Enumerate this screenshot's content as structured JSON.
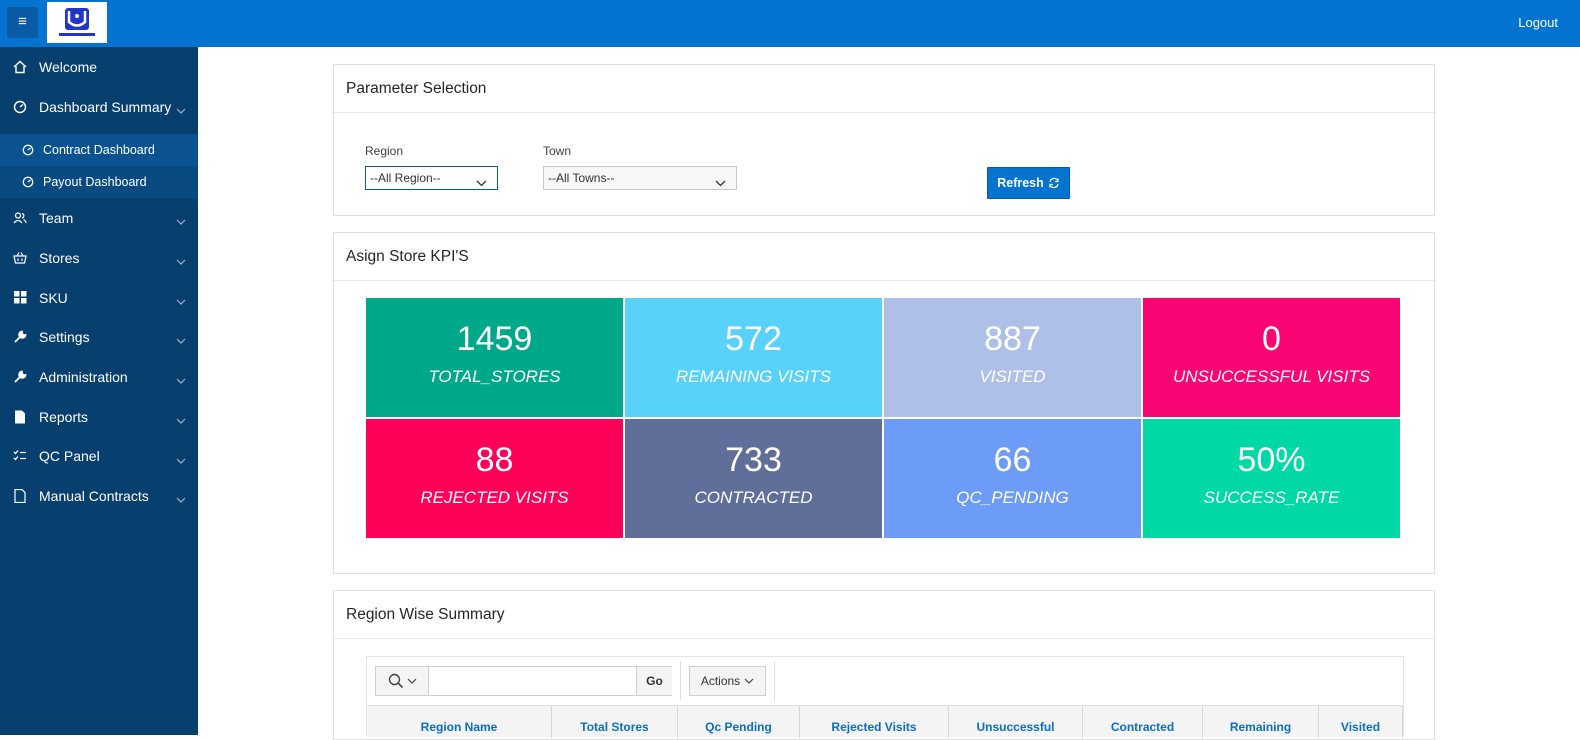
{
  "header": {
    "menu_icon": "hamburger-icon",
    "logo_alt": "Unilever",
    "logout": "Logout",
    "bg_color": "#0574d1"
  },
  "sidebar": {
    "items": [
      {
        "label": "Welcome",
        "icon": "home-icon"
      },
      {
        "label": "Dashboard Summary",
        "icon": "gauge-icon",
        "expanded": true
      },
      {
        "label": "Team",
        "icon": "users-icon"
      },
      {
        "label": "Stores",
        "icon": "basket-icon"
      },
      {
        "label": "SKU",
        "icon": "grid-icon"
      },
      {
        "label": "Settings",
        "icon": "wrench-icon"
      },
      {
        "label": "Administration",
        "icon": "wrench-icon"
      },
      {
        "label": "Reports",
        "icon": "file-icon"
      },
      {
        "label": "QC Panel",
        "icon": "checklist-icon"
      },
      {
        "label": "Manual Contracts",
        "icon": "document-icon"
      }
    ],
    "sub_items": [
      {
        "label": "Contract Dashboard",
        "icon": "gauge-icon",
        "active": true
      },
      {
        "label": "Payout Dashboard",
        "icon": "gauge-icon"
      }
    ]
  },
  "params": {
    "title": "Parameter Selection",
    "region_label": "Region",
    "region_value": "--All Region--",
    "town_label": "Town",
    "town_value": "--All Towns--",
    "refresh_label": "Refresh"
  },
  "kpis": {
    "title": "Asign Store KPI'S",
    "cards": [
      {
        "value": "1459",
        "label": "TOTAL_STORES",
        "color": "#00a88a"
      },
      {
        "value": "572",
        "label": "REMAINING VISITS",
        "color": "#58d1fb"
      },
      {
        "value": "887",
        "label": "VISITED",
        "color": "#aec0e8"
      },
      {
        "value": "0",
        "label": "UNSUCCESSFUL VISITS",
        "color": "#fa0674"
      },
      {
        "value": "88",
        "label": "REJECTED VISITS",
        "color": "#ff0058"
      },
      {
        "value": "733",
        "label": "CONTRACTED",
        "color": "#606f99"
      },
      {
        "value": "66",
        "label": "QC_PENDING",
        "color": "#6c9bf8"
      },
      {
        "value": "50%",
        "label": "SUCCESS_RATE",
        "color": "#00d9a5"
      }
    ]
  },
  "region_summary": {
    "title": "Region Wise Summary",
    "search_placeholder": "",
    "go_label": "Go",
    "actions_label": "Actions",
    "columns": [
      "Region Name",
      "Total Stores",
      "Qc Pending",
      "Rejected Visits",
      "Unsuccessful",
      "Contracted",
      "Remaining",
      "Visited"
    ]
  }
}
